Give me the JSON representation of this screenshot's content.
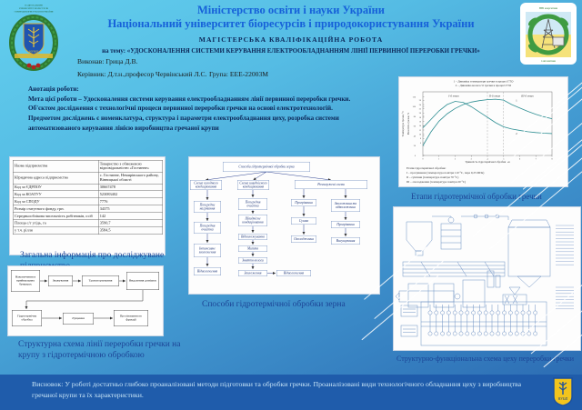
{
  "header": {
    "ministry": "Міністерство освіти і науки України",
    "university": "Національний університет біоресурсів і природокористування України",
    "work_type": "МАГІСТЕРСЬКА  КВАЛІФІКАЦІЙНА  РОБОТА",
    "topic": "на тему: «УДОСКОНАЛЕННЯ СИСТЕМИ КЕРУВАННЯ ЕЛЕКТРООБЛАДНАННЯМ ЛІНІЇ ПЕРВИННОЇ ПЕРЕРОБКИ ГРЕЧКИ»",
    "author_label": "Виконав: Грица Д.В.",
    "supervisor_label": "Керівник: Д.т.н.,професор Червінський Л.С.",
    "group_label": "Група: ЕЕЕ-22003М"
  },
  "annotation": {
    "title": "Анотація роботи:",
    "lines": [
      "Мета цієї роботи – Удосконалення системи керування електрообладнанням лінії первинної переробки гречки.",
      "Об'єктом дослідження є технологічні процеси первинної переробки гречки на основі електротехнологій.",
      "Предметом досліджень є номенклатура, структура і параметри електрообладнання цеху, розробка системи автоматизованого керування лінією виробництва гречаної крупи"
    ]
  },
  "enterprise_table": {
    "rows": [
      {
        "label": "Назва підприємства",
        "value": "Товариство з обмеженою відповідальністю «Гостинне»"
      },
      {
        "label": "Юридична адреса підприємства",
        "value": "с. Гостинне, Немирівського району, Вінницької області"
      },
      {
        "label": "Код за ЄДРПОУ",
        "value": "30667478"
      },
      {
        "label": "Код за КОАТУУ",
        "value": "523083402"
      },
      {
        "label": "Код за СПОДУ",
        "value": "7776"
      },
      {
        "label": "Розмір статутного фонду, грн.",
        "value": "34375"
      },
      {
        "label": "Середньооблікова чисельність робітників, осіб",
        "value": "142"
      },
      {
        "label": "Площа с/г угідь, га",
        "value": "3590,7"
      },
      {
        "label": "у т.ч. рілля",
        "value": "3584,5"
      }
    ],
    "caption": "Загальна інформація про досліджуване підприємство"
  },
  "line_scheme": {
    "blocks": [
      "Накопичення в приймальних бункерах",
      "Зважування",
      "Транспортування",
      "Видалення домішок",
      "Гідротермічна обробка",
      "Лущення",
      "Просіювання по фракції"
    ],
    "caption": "Структурна схема лінії переробки гречки на крупу з гідротермічною обробкою"
  },
  "hydro_methods": {
    "root": "Способи гідротермічної обробки зерна",
    "branches": [
      {
        "title": "Схема холодного кондиціювання",
        "steps": [
          "Попереднє нагрівання",
          "Попередня очистка",
          "Інтенсивне зволоження",
          "Відволоження"
        ]
      },
      {
        "title": "Схема швидкісного кондиціювання",
        "steps": [
          "Попередня очистка",
          "Швидкісне кондиціювання",
          "Відволожування",
          "Миття",
          "Зняття вологи",
          "Зволоження"
        ],
        "extra": "Відволоження"
      },
      {
        "title": "Розгалужені схеми",
        "sub_left": [
          "Прогрівання",
          "Сушка",
          "Охолодження"
        ],
        "sub_right": [
          "Зволоження та відволоження",
          "Прогрівання",
          "Висушування"
        ]
      }
    ],
    "caption": "Способи гідротермічної обробки зерна"
  },
  "chart_data": {
    "type": "line",
    "legend": [
      "1 – Динаміка температури гречки в процесі ГТО",
      "2 – Динаміка вологості гречки в процесі ГТО"
    ],
    "stage_labels": [
      "І-й етап",
      "ІІ-й етап",
      "ІІІ-й етап"
    ],
    "stage_bounds_x": [
      4,
      5
    ],
    "xlabel": "Тривалість гідротермічної обробки, хв",
    "ylabel_left": "Температура гречки, °С",
    "ylabel_right": "Вологість гречки, %",
    "xlim": [
      0,
      8
    ],
    "xticks": [
      0,
      1,
      2,
      3,
      4,
      5,
      6,
      7,
      8
    ],
    "x": [
      0,
      0.5,
      1,
      1.5,
      2,
      2.5,
      3,
      3.5,
      4,
      4.5,
      5,
      5.5,
      6,
      6.5,
      7,
      7.5,
      8
    ],
    "series": [
      {
        "name": "1",
        "label": "Температура гречки, °С",
        "ylim": [
          0,
          130
        ],
        "yticks": [
          0,
          20,
          40,
          60,
          80,
          100,
          120
        ],
        "values": [
          20,
          48,
          70,
          85,
          96,
          104,
          109,
          112,
          114,
          115,
          113,
          104,
          97,
          90,
          84,
          79,
          75
        ]
      },
      {
        "name": "2",
        "label": "Вологість гречки, %",
        "ylim": [
          0,
          30
        ],
        "yticks": [
          6,
          8,
          10,
          12,
          14,
          16,
          18,
          20,
          22,
          24,
          26
        ],
        "values": [
          13,
          17,
          21,
          24,
          25.5,
          25,
          23,
          20.5,
          18,
          15.5,
          13.5,
          12.5,
          11.8,
          11.2,
          10.8,
          10.5,
          10.3
        ]
      }
    ],
    "notes": [
      "Етапи гідротермічної обробки:",
      "І – прогрівання (температура повітря 110 °С, пара 0,25 МПа)",
      "ІІ – сушіння (температура повітря 70 °С)",
      "ІІІ – охолодження (температура повітря 20 °С)"
    ],
    "caption": "Етапи гідротермічної обробки гречки"
  },
  "shop_scheme": {
    "caption": "Структурно-функціональна схема цеху переробки гречки"
  },
  "conclusion": "Висновок: У роботі достатньо глибоко проаналізовані методи підготовки та обробки гречки. Проаналізовані види технологічного обладнання цеху з виробництва гречаної крупи та їх характеристики.",
  "logos": {
    "left": {
      "line1": "НАЦІОНАЛЬНИЙ",
      "line2": "УНІВЕРСИТЕТ БІОРЕСУРСІВ",
      "line3": "І ПРИРОДОКОРИСТУВАННЯ УКРАЇНИ",
      "shield_text": "НУБіП"
    },
    "right": {
      "top_text": "ННІ енергетики",
      "bottom_text": "і автоматики"
    },
    "bottom": {
      "shield_text": "НУБіП"
    }
  },
  "colors": {
    "header_text": "#1661d9",
    "body_navy": "#0c2657",
    "caption_blue": "#1c4496",
    "conclusion_bg": "#1f5cab",
    "curve": "#2f8f93",
    "logo_yellow": "#f2c41d"
  }
}
